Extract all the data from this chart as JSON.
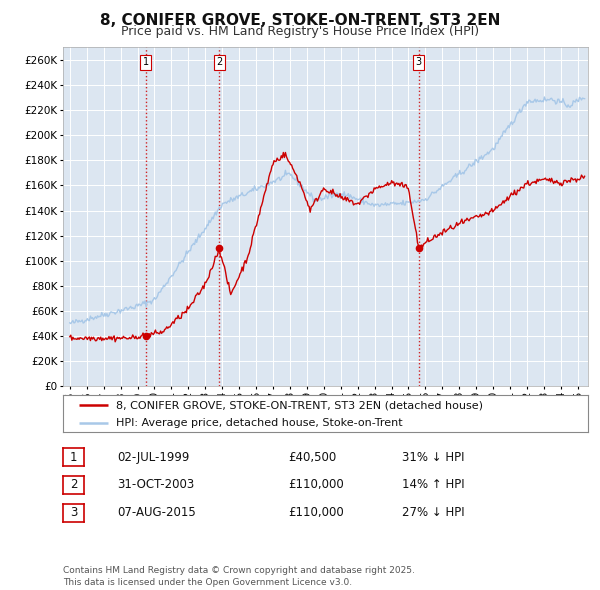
{
  "title": "8, CONIFER GROVE, STOKE-ON-TRENT, ST3 2EN",
  "subtitle": "Price paid vs. HM Land Registry's House Price Index (HPI)",
  "ylim": [
    0,
    270000
  ],
  "yticks": [
    0,
    20000,
    40000,
    60000,
    80000,
    100000,
    120000,
    140000,
    160000,
    180000,
    200000,
    220000,
    240000,
    260000
  ],
  "xlim_start": 1994.6,
  "xlim_end": 2025.6,
  "background_color": "#ffffff",
  "plot_bg_color": "#dce6f1",
  "grid_color": "#ffffff",
  "red_line_color": "#cc0000",
  "blue_line_color": "#a8c8e8",
  "vline_color": "#cc0000",
  "legend_entries": [
    "8, CONIFER GROVE, STOKE-ON-TRENT, ST3 2EN (detached house)",
    "HPI: Average price, detached house, Stoke-on-Trent"
  ],
  "table_rows": [
    {
      "num": "1",
      "date": "02-JUL-1999",
      "price": "£40,500",
      "rel": "31% ↓ HPI"
    },
    {
      "num": "2",
      "date": "31-OCT-2003",
      "price": "£110,000",
      "rel": "14% ↑ HPI"
    },
    {
      "num": "3",
      "date": "07-AUG-2015",
      "price": "£110,000",
      "rel": "27% ↓ HPI"
    }
  ],
  "footer": "Contains HM Land Registry data © Crown copyright and database right 2025.\nThis data is licensed under the Open Government Licence v3.0.",
  "title_fontsize": 11,
  "subtitle_fontsize": 9,
  "tick_fontsize": 7.5,
  "legend_fontsize": 8,
  "table_fontsize": 8.5,
  "footer_fontsize": 6.5,
  "marker_years": [
    1999.5,
    2003.83,
    2015.6
  ],
  "marker_prices": [
    40500,
    110000,
    110000
  ],
  "marker_labels": [
    "1",
    "2",
    "3"
  ]
}
